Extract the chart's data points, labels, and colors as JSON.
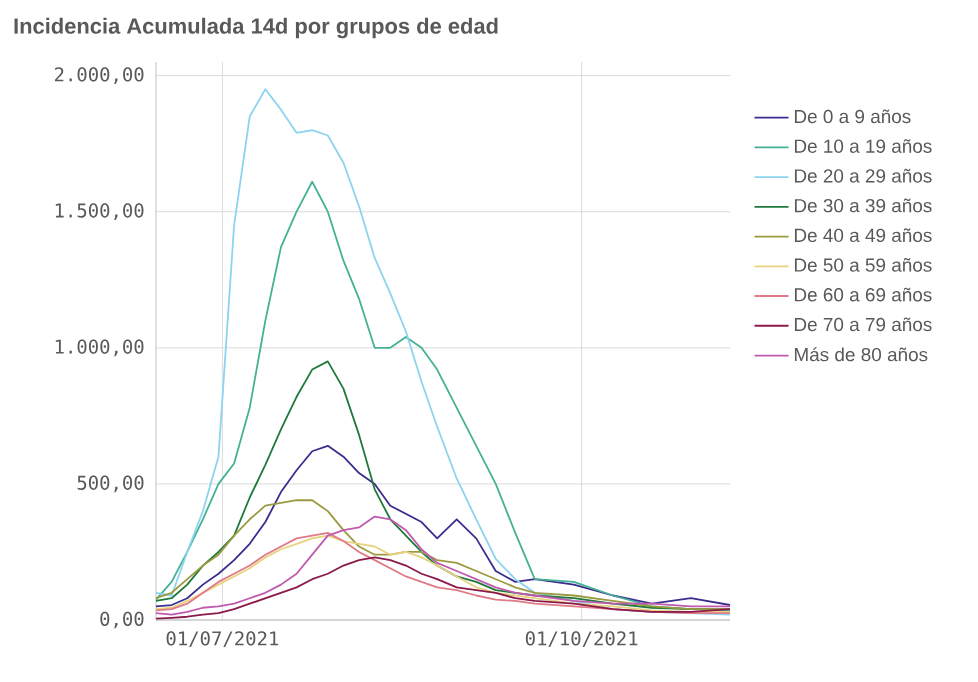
{
  "chart_data": {
    "type": "line",
    "title": "Incidencia Acumulada 14d por grupos de edad",
    "x": [
      "2021-06-14",
      "2021-06-18",
      "2021-06-22",
      "2021-06-26",
      "2021-06-30",
      "2021-07-04",
      "2021-07-08",
      "2021-07-12",
      "2021-07-16",
      "2021-07-20",
      "2021-07-24",
      "2021-07-28",
      "2021-08-01",
      "2021-08-05",
      "2021-08-09",
      "2021-08-13",
      "2021-08-17",
      "2021-08-21",
      "2021-08-25",
      "2021-08-30",
      "2021-09-04",
      "2021-09-09",
      "2021-09-14",
      "2021-09-19",
      "2021-09-29",
      "2021-10-09",
      "2021-10-19",
      "2021-10-29",
      "2021-11-08"
    ],
    "xlim": [
      "2021-06-14",
      "2021-11-08"
    ],
    "xticks": [
      {
        "value": "2021-07-01",
        "label": "01/07/2021"
      },
      {
        "value": "2021-10-01",
        "label": "01/10/2021"
      }
    ],
    "ylim": [
      0,
      2050
    ],
    "yticks": [
      {
        "value": 0,
        "label": "0,00"
      },
      {
        "value": 500,
        "label": "500,00"
      },
      {
        "value": 1000,
        "label": "1.000,00"
      },
      {
        "value": 1500,
        "label": "1.500,00"
      },
      {
        "value": 2000,
        "label": "2.000,00"
      }
    ],
    "grid": true,
    "legend": "right",
    "marker": "none",
    "line_style": "solid",
    "series": [
      {
        "name": "De 0 a 9 años",
        "color": "#3b2d8f",
        "values": [
          50,
          55,
          80,
          130,
          170,
          220,
          280,
          360,
          470,
          550,
          620,
          640,
          600,
          540,
          500,
          420,
          390,
          360,
          300,
          370,
          300,
          180,
          140,
          150,
          130,
          90,
          60,
          80,
          55
        ]
      },
      {
        "name": "De 10 a 19 años",
        "color": "#44b195",
        "values": [
          75,
          140,
          250,
          370,
          500,
          575,
          780,
          1100,
          1370,
          1500,
          1610,
          1500,
          1320,
          1180,
          1000,
          1000,
          1040,
          1000,
          920,
          780,
          640,
          500,
          320,
          150,
          140,
          90,
          50,
          40,
          35
        ]
      },
      {
        "name": "De 20 a 29 años",
        "color": "#8dd3ef",
        "values": [
          100,
          90,
          250,
          400,
          600,
          1450,
          1850,
          1950,
          1875,
          1790,
          1800,
          1780,
          1680,
          1520,
          1330,
          1200,
          1060,
          875,
          710,
          520,
          370,
          225,
          150,
          100,
          70,
          40,
          30,
          null,
          20
        ]
      },
      {
        "name": "De 30 a 39 años",
        "color": "#1e7a3a",
        "values": [
          70,
          80,
          130,
          200,
          250,
          310,
          450,
          570,
          700,
          820,
          920,
          950,
          850,
          680,
          480,
          370,
          310,
          250,
          200,
          160,
          140,
          110,
          100,
          90,
          80,
          60,
          45,
          40,
          40
        ]
      },
      {
        "name": "De 40 a 49 años",
        "color": "#9c9a40",
        "values": [
          80,
          100,
          150,
          200,
          240,
          310,
          370,
          420,
          430,
          440,
          440,
          400,
          330,
          270,
          240,
          240,
          250,
          250,
          220,
          210,
          180,
          150,
          120,
          100,
          90,
          70,
          50,
          40,
          40
        ]
      },
      {
        "name": "De 50 a 59 años",
        "color": "#e8d27f",
        "values": [
          40,
          45,
          70,
          100,
          130,
          160,
          190,
          230,
          260,
          280,
          300,
          310,
          290,
          280,
          270,
          240,
          250,
          230,
          200,
          160,
          120,
          100,
          90,
          80,
          60,
          50,
          35,
          30,
          30
        ]
      },
      {
        "name": "De 60 a 69 años",
        "color": "#e07a87",
        "values": [
          35,
          40,
          60,
          100,
          140,
          170,
          200,
          240,
          270,
          300,
          310,
          320,
          290,
          250,
          220,
          190,
          160,
          140,
          120,
          110,
          90,
          75,
          70,
          60,
          50,
          40,
          30,
          25,
          25
        ]
      },
      {
        "name": "De 70 a 79 años",
        "color": "#8b1a4a",
        "values": [
          5,
          8,
          12,
          20,
          25,
          40,
          60,
          80,
          100,
          120,
          150,
          170,
          200,
          220,
          230,
          220,
          200,
          170,
          150,
          120,
          110,
          100,
          80,
          70,
          60,
          40,
          30,
          30,
          40
        ]
      },
      {
        "name": "Más de 80 años",
        "color": "#c05aaf",
        "values": [
          25,
          20,
          30,
          45,
          50,
          60,
          80,
          100,
          130,
          170,
          240,
          310,
          330,
          340,
          380,
          370,
          330,
          260,
          210,
          180,
          150,
          120,
          100,
          90,
          70,
          60,
          60,
          50,
          50
        ]
      }
    ]
  }
}
